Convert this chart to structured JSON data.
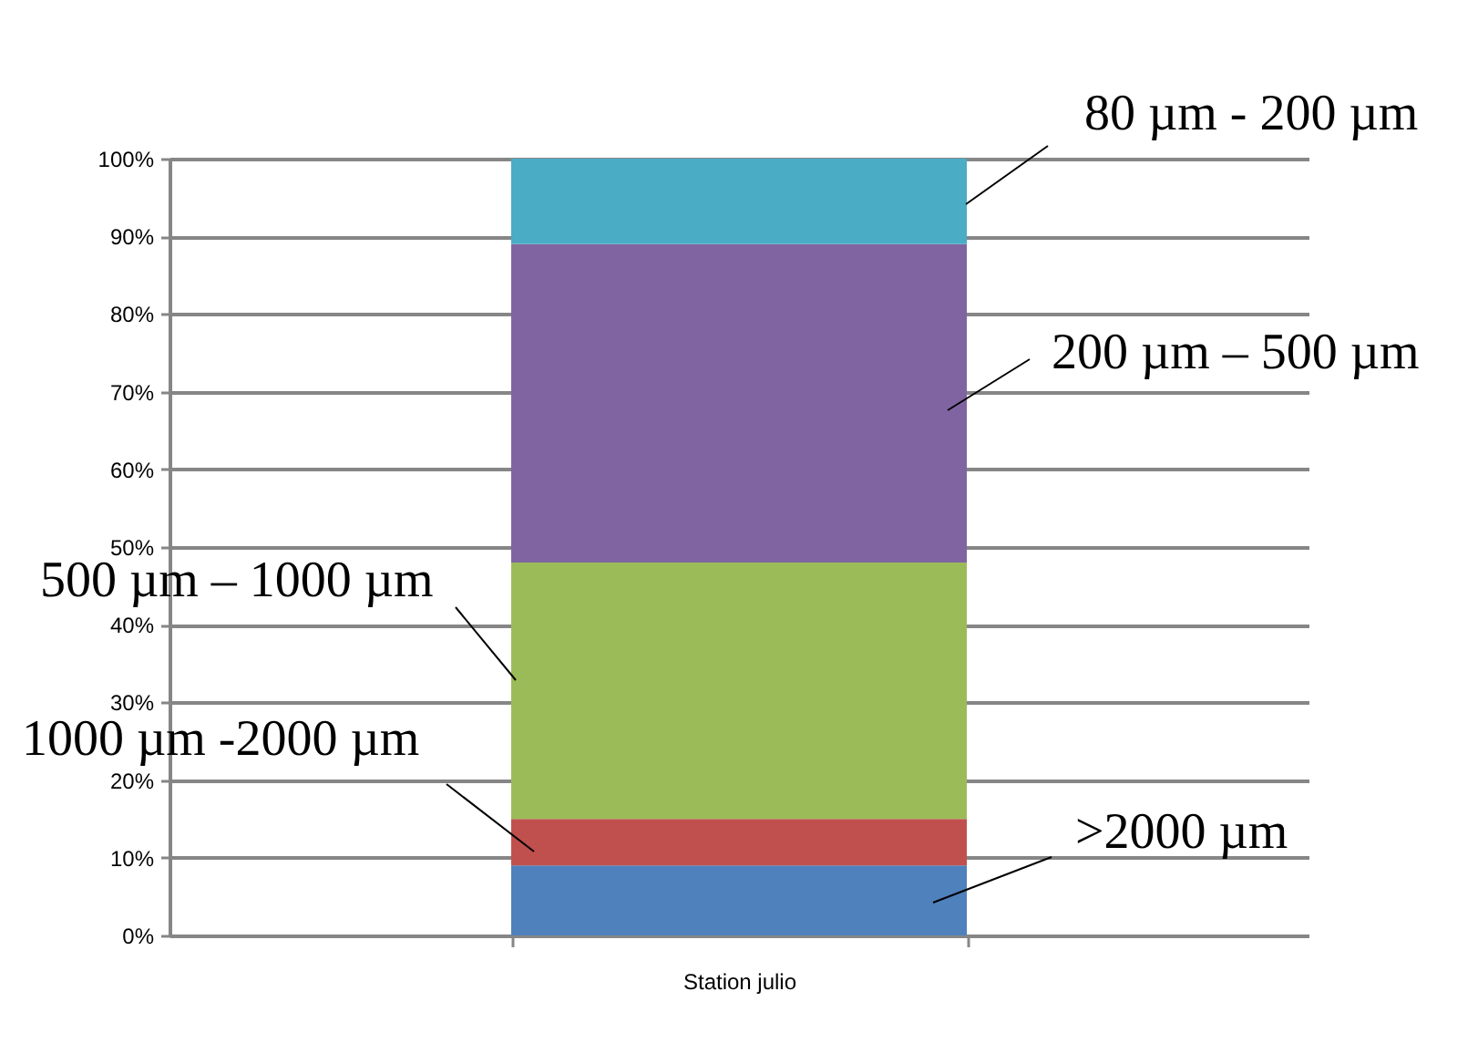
{
  "chart_data": {
    "type": "bar",
    "stacked": true,
    "grid": true,
    "categories": [
      "Station julio"
    ],
    "series": [
      {
        "name": ">2000 µm",
        "color": "#4f81bd",
        "values": [
          9
        ]
      },
      {
        "name": "1000 µm -2000 µm",
        "color": "#c0504d",
        "values": [
          6
        ]
      },
      {
        "name": "500 µm – 1000 µm",
        "color": "#9bbb59",
        "values": [
          33
        ]
      },
      {
        "name": "200 µm – 500 µm",
        "color": "#8064a2",
        "values": [
          41
        ]
      },
      {
        "name": "80 µm - 200 µm",
        "color": "#4bacc6",
        "values": [
          11
        ]
      }
    ],
    "ylim": [
      0,
      100
    ],
    "yticks": [
      {
        "value": 0,
        "label": "0%"
      },
      {
        "value": 10,
        "label": "10%"
      },
      {
        "value": 20,
        "label": "20%"
      },
      {
        "value": 30,
        "label": "30%"
      },
      {
        "value": 40,
        "label": "40%"
      },
      {
        "value": 50,
        "label": "50%"
      },
      {
        "value": 60,
        "label": "60%"
      },
      {
        "value": 70,
        "label": "70%"
      },
      {
        "value": 80,
        "label": "80%"
      },
      {
        "value": 90,
        "label": "90%"
      },
      {
        "value": 100,
        "label": "100%"
      }
    ]
  }
}
